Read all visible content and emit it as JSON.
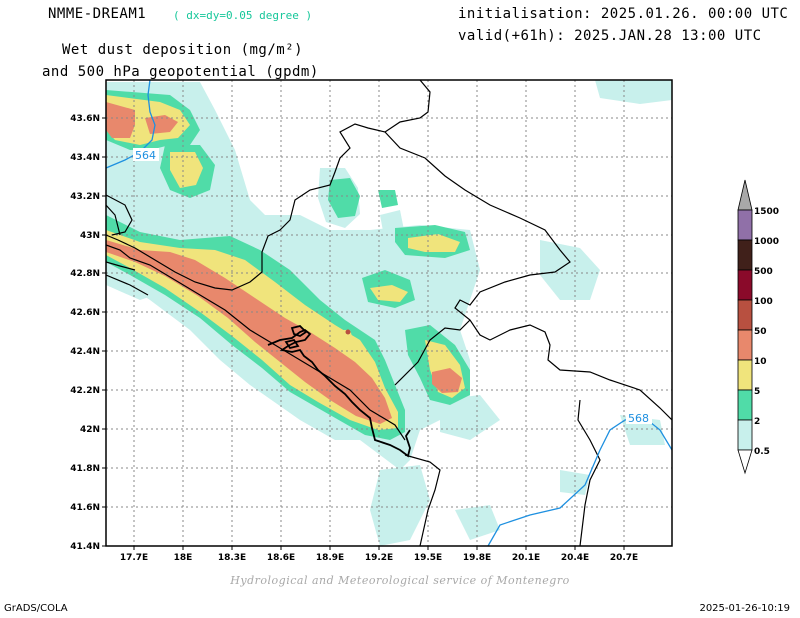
{
  "header": {
    "model_name": "NMME-DREAM1",
    "model_resolution": "( dx=dy=0.05 degree )",
    "init_line": "initialisation: 2025.01.26. 00:00 UTC",
    "valid_line": "valid(+61h): 2025.JAN.28 13:00 UTC",
    "title_line1": "Wet dust deposition (mg/m²)",
    "title_line2": "and 500 hPa geopotential (gpdm)"
  },
  "map": {
    "lon_ticks": [
      "17.7E",
      "18E",
      "18.3E",
      "18.6E",
      "18.9E",
      "19.2E",
      "19.5E",
      "19.8E",
      "20.1E",
      "20.4E",
      "20.7E"
    ],
    "lat_ticks": [
      "43.6N",
      "43.4N",
      "43.2N",
      "43N",
      "42.8N",
      "42.6N",
      "42.4N",
      "42.2N",
      "42N",
      "41.8N",
      "41.6N",
      "41.4N"
    ],
    "contour_labels": [
      "564",
      "568"
    ],
    "contour_color": "#1e90e0",
    "grid": true
  },
  "legend": {
    "levels": [
      "0.5",
      "2",
      "5",
      "10",
      "50",
      "100",
      "500",
      "1000",
      "1500"
    ],
    "colors": [
      "#c8f0ec",
      "#50dca8",
      "#f0e47c",
      "#e8886c",
      "#b85040",
      "#8a0a2a",
      "#40201a",
      "#9070a8",
      "#a8a8a8"
    ]
  },
  "footer": {
    "credit": "Hydrological and Meteorological service of Montenegro",
    "left": "GrADS/COLA",
    "right": "2025-01-26-10:19"
  }
}
